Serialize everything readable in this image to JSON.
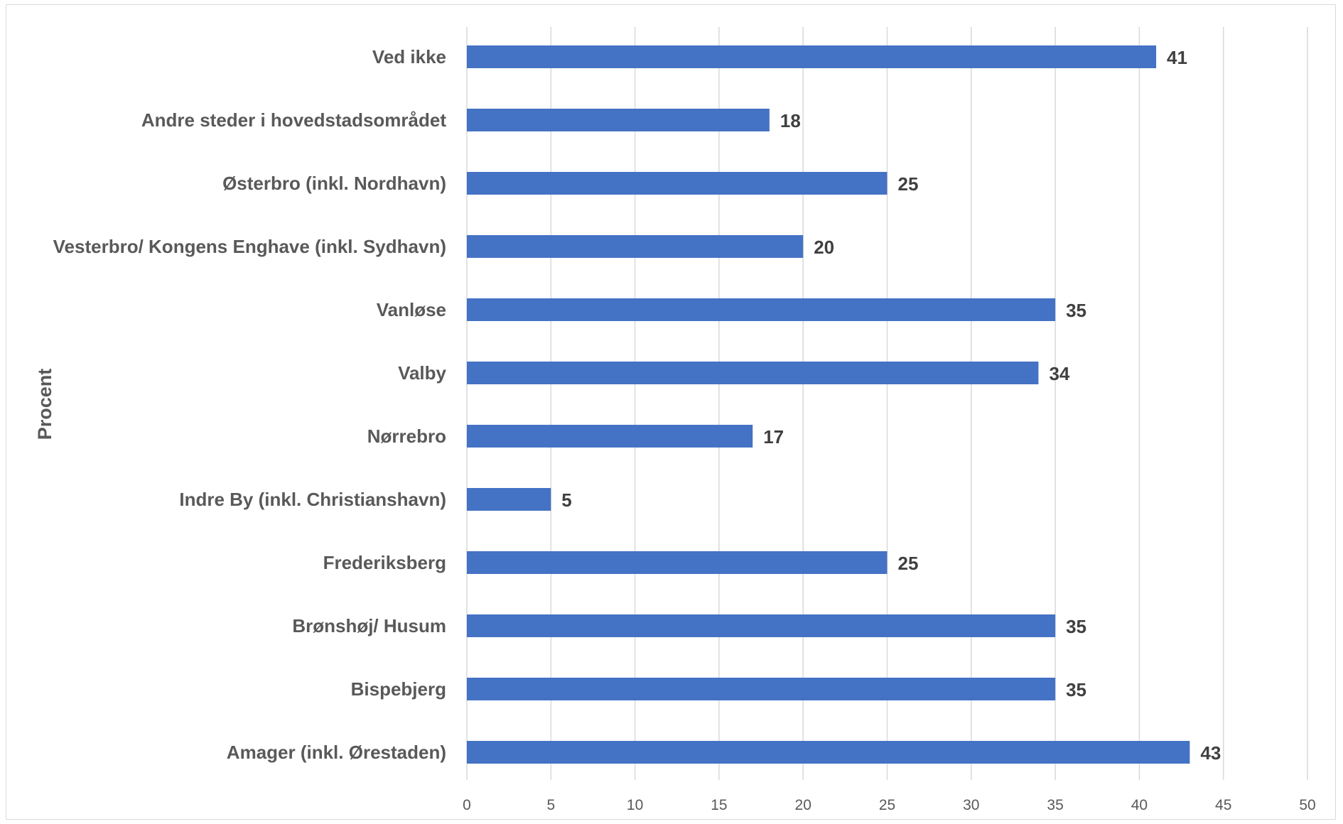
{
  "chart_data": {
    "type": "bar",
    "orientation": "horizontal",
    "ylabel": "Procent",
    "xlabel": "",
    "title": "",
    "xlim": [
      0,
      50
    ],
    "x_ticks": [
      0,
      5,
      10,
      15,
      20,
      25,
      30,
      35,
      40,
      45,
      50
    ],
    "grid": "vertical",
    "bar_color": "#4472C4",
    "categories": [
      "Ved ikke",
      "Andre steder i hovedstadsområdet",
      "Østerbro (inkl. Nordhavn)",
      "Vesterbro/ Kongens Enghave (inkl. Sydhavn)",
      "Vanløse",
      "Valby",
      "Nørrebro",
      "Indre By (inkl. Christianshavn)",
      "Frederiksberg",
      "Brønshøj/ Husum",
      "Bispebjerg",
      "Amager (inkl. Ørestaden)"
    ],
    "values": [
      41,
      18,
      25,
      20,
      35,
      34,
      17,
      5,
      25,
      35,
      35,
      43
    ]
  }
}
